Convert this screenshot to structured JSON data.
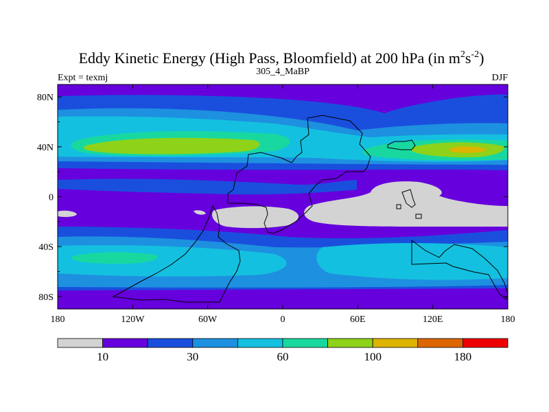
{
  "title": {
    "main": "Eddy Kinetic Energy (High Pass, Bloomfield) at 200 hPa (in m",
    "sup1": "2",
    "mid": "s",
    "sup2": "-2",
    "close": ")"
  },
  "subtitle_left": "Expt = texmj",
  "subtitle_center": "305_4_MaBP",
  "subtitle_right": "DJF",
  "colors": {
    "background": "#ffffff",
    "frame": "#000000",
    "coast": "#000000"
  },
  "chart_data": {
    "type": "heatmap",
    "x_ticks": [
      "180",
      "120W",
      "60W",
      "0",
      "60E",
      "120E",
      "180"
    ],
    "y_ticks": [
      "80N",
      "40N",
      "0",
      "40S",
      "80S"
    ],
    "xlim": [
      -180,
      180
    ],
    "ylim": [
      -90,
      90
    ],
    "colorbar": {
      "colors": [
        "#d3d3d3",
        "#6600dd",
        "#1a4fdd",
        "#1e90e0",
        "#14c0e0",
        "#18d8a0",
        "#8ed21a",
        "#ddb400",
        "#dd6600",
        "#ee0000"
      ],
      "labels": [
        "10",
        "30",
        "60",
        "100",
        "180"
      ]
    }
  }
}
